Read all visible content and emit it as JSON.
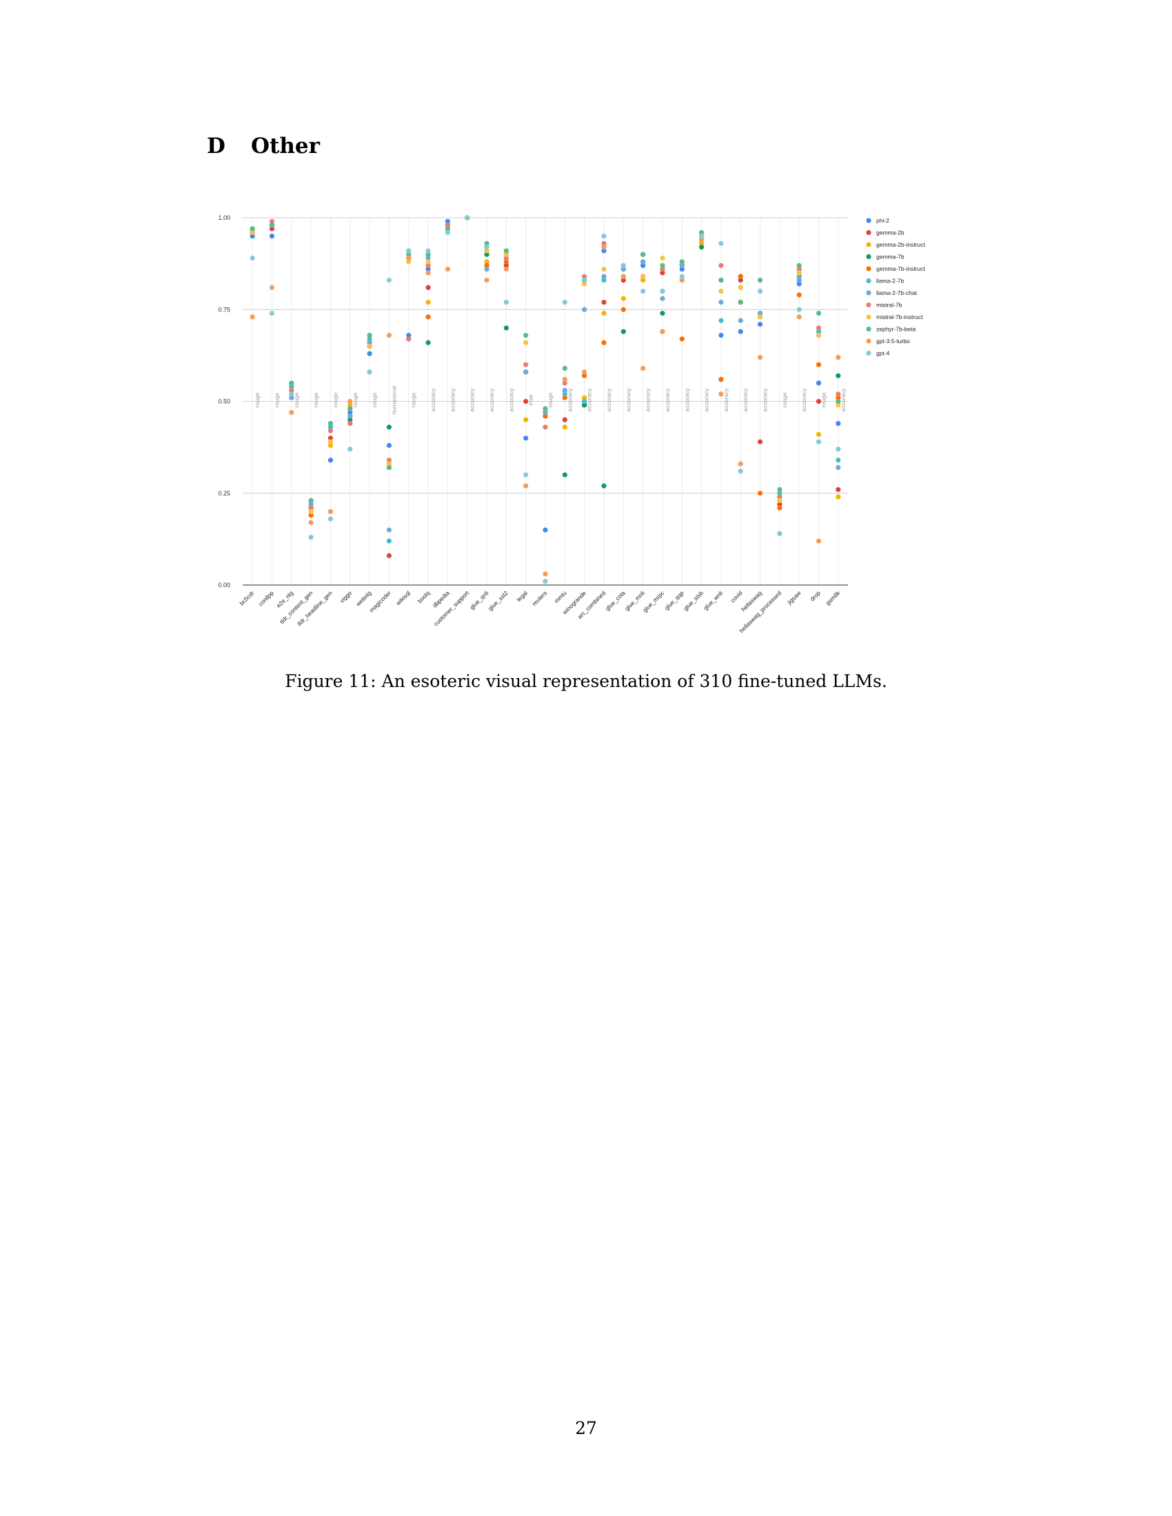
{
  "section": {
    "number": "D",
    "title": "Other"
  },
  "caption": "Figure 11: An esoteric visual representation of 310 fine-tuned LLMs.",
  "page_number": "27",
  "chart_data": {
    "type": "scatter",
    "ylim": [
      0,
      1
    ],
    "yticks": [
      "0.00",
      "0.25",
      "0.50",
      "0.75",
      "1.00"
    ],
    "legend_position": "right",
    "grid": true,
    "categories": [
      "bc5cdr",
      "conllpp",
      "e2e_nlg",
      "tldr_content_gen",
      "tldr_headline_gen",
      "viggo",
      "webnlg",
      "magicoder",
      "wikisql",
      "boolq",
      "dbpedia",
      "customer_support",
      "glue_qnli",
      "glue_sst2",
      "legal",
      "reuters",
      "mmlu",
      "winogrande",
      "arc_combined",
      "glue_cola",
      "glue_mnli",
      "glue_mrpc",
      "glue_qqp",
      "glue_stsb",
      "glue_wnli",
      "covid",
      "hellaswag",
      "hellaswag_processed",
      "jigsaw",
      "drop",
      "gsm8k"
    ],
    "metrics": [
      "rouge",
      "rouge",
      "rouge",
      "rouge",
      "rouge",
      "rouge",
      "rouge",
      "humaneval",
      "rouge",
      "accuracy",
      "accuracy",
      "accuracy",
      "accuracy",
      "accuracy",
      "mae",
      "rouge",
      "accuracy",
      "accuracy",
      "accuracy",
      "accuracy",
      "accuracy",
      "accuracy",
      "accuracy",
      "accuracy",
      "accuracy",
      "accuracy",
      "accuracy",
      "rouge",
      "accuracy",
      "rouge",
      "accuracy"
    ],
    "series": [
      {
        "name": "phi-2",
        "color": "#4285f4",
        "values": [
          0.95,
          0.95,
          0.51,
          0.22,
          0.34,
          0.47,
          0.63,
          0.38,
          0.68,
          0.86,
          0.99,
          1.0,
          0.88,
          0.87,
          0.4,
          0.15,
          0.53,
          0.49,
          0.91,
          0.83,
          0.87,
          0.86,
          0.86,
          0.94,
          0.68,
          0.69,
          0.71,
          0.23,
          0.82,
          0.55,
          0.44
        ]
      },
      {
        "name": "gemma-2b",
        "color": "#db4437",
        "values": [
          0.96,
          0.97,
          0.53,
          0.2,
          0.4,
          0.44,
          0.65,
          0.08,
          0.67,
          0.81,
          0.98,
          1.0,
          0.87,
          0.87,
          0.5,
          0.46,
          0.45,
          0.5,
          0.77,
          0.83,
          0.84,
          0.85,
          0.87,
          0.94,
          0.56,
          0.83,
          0.39,
          0.22,
          0.85,
          0.5,
          0.26
        ]
      },
      {
        "name": "gemma-2b-instruct",
        "color": "#f4b400",
        "values": [
          0.96,
          0.98,
          0.55,
          0.2,
          0.38,
          0.49,
          0.65,
          0.33,
          0.89,
          0.77,
          0.97,
          1.0,
          0.88,
          0.89,
          0.45,
          0.47,
          0.43,
          0.51,
          0.74,
          0.78,
          0.83,
          0.87,
          0.87,
          0.93,
          0.8,
          0.81,
          0.73,
          0.21,
          0.84,
          0.41,
          0.24
        ]
      },
      {
        "name": "gemma-7b",
        "color": "#0f9d58",
        "values": [
          0.97,
          0.98,
          0.54,
          0.21,
          0.43,
          0.45,
          0.66,
          0.43,
          0.89,
          0.66,
          0.97,
          1.0,
          0.9,
          0.7,
          0.58,
          0.47,
          0.3,
          0.49,
          0.27,
          0.69,
          0.9,
          0.74,
          0.87,
          0.92,
          0.83,
          0.84,
          0.73,
          0.24,
          0.83,
          0.69,
          0.57
        ]
      },
      {
        "name": "gemma-7b-instruct",
        "color": "#ff6d00",
        "values": [
          0.96,
          0.98,
          0.54,
          0.19,
          0.39,
          0.44,
          0.65,
          0.32,
          0.89,
          0.73,
          0.97,
          1.0,
          0.87,
          0.88,
          0.58,
          0.46,
          0.51,
          0.57,
          0.66,
          0.75,
          0.84,
          0.69,
          0.67,
          0.94,
          0.56,
          0.84,
          0.25,
          0.21,
          0.79,
          0.6,
          0.51
        ]
      },
      {
        "name": "llama-2-7b",
        "color": "#46bdc6",
        "values": [
          0.96,
          0.98,
          0.54,
          0.23,
          0.43,
          0.48,
          0.67,
          0.12,
          0.91,
          0.9,
          0.98,
          1.0,
          0.91,
          0.91,
          0.58,
          0.48,
          0.52,
          0.5,
          0.83,
          0.86,
          0.88,
          0.8,
          0.87,
          0.95,
          0.72,
          0.77,
          0.74,
          0.25,
          0.84,
          0.69,
          0.34
        ]
      },
      {
        "name": "llama-2-7b-chat",
        "color": "#6fa8dc",
        "values": [
          0.96,
          0.98,
          0.51,
          0.22,
          0.44,
          0.46,
          0.66,
          0.15,
          0.89,
          0.89,
          0.98,
          1.0,
          0.86,
          0.9,
          0.58,
          0.47,
          0.53,
          0.75,
          0.84,
          0.86,
          0.88,
          0.78,
          0.87,
          0.95,
          0.77,
          0.72,
          0.74,
          0.23,
          0.83,
          0.68,
          0.32
        ]
      },
      {
        "name": "mistral-7b",
        "color": "#e67c73",
        "values": [
          0.97,
          0.99,
          0.53,
          0.21,
          0.42,
          0.44,
          0.68,
          0.34,
          0.67,
          0.87,
          0.98,
          1.0,
          0.92,
          0.89,
          0.6,
          0.43,
          0.55,
          0.84,
          0.93,
          0.84,
          0.84,
          0.86,
          0.88,
          0.95,
          0.87,
          0.77,
          0.83,
          0.24,
          0.86,
          0.7,
          0.52
        ]
      },
      {
        "name": "mistral-7b-instruct",
        "color": "#f6c342",
        "values": [
          0.96,
          0.98,
          0.55,
          0.2,
          0.39,
          0.5,
          0.65,
          0.33,
          0.88,
          0.88,
          0.97,
          1.0,
          0.91,
          0.9,
          0.66,
          0.48,
          0.56,
          0.82,
          0.86,
          0.84,
          0.84,
          0.89,
          0.88,
          0.95,
          0.8,
          0.81,
          0.73,
          0.23,
          0.85,
          0.68,
          0.49
        ]
      },
      {
        "name": "zephyr-7b-beta",
        "color": "#57bb8a",
        "values": [
          0.97,
          0.98,
          0.55,
          0.23,
          0.44,
          0.48,
          0.68,
          0.32,
          0.9,
          0.9,
          0.97,
          1.0,
          0.93,
          0.91,
          0.68,
          0.48,
          0.59,
          0.83,
          0.92,
          0.87,
          0.9,
          0.87,
          0.88,
          0.96,
          0.83,
          0.77,
          0.83,
          0.26,
          0.87,
          0.74,
          0.5
        ]
      },
      {
        "name": "gpt-3.5-turbo",
        "color": "#f39c58",
        "values": [
          0.73,
          0.81,
          0.47,
          0.17,
          0.2,
          0.5,
          0.58,
          0.68,
          0.89,
          0.85,
          0.86,
          1.0,
          0.83,
          0.86,
          0.27,
          0.03,
          0.56,
          0.58,
          0.92,
          0.84,
          0.59,
          0.69,
          0.83,
          0.94,
          0.52,
          0.33,
          0.62,
          0.14,
          0.73,
          0.12,
          0.62
        ]
      },
      {
        "name": "gpt-4",
        "color": "#80cbd8",
        "values": [
          0.89,
          0.74,
          0.52,
          0.13,
          0.18,
          0.37,
          0.58,
          0.83,
          0.91,
          0.91,
          0.96,
          1.0,
          0.92,
          0.77,
          0.3,
          0.01,
          0.77,
          0.83,
          0.95,
          0.87,
          0.8,
          0.8,
          0.84,
          0.95,
          0.93,
          0.31,
          0.8,
          0.14,
          0.75,
          0.39,
          0.37
        ]
      }
    ]
  }
}
